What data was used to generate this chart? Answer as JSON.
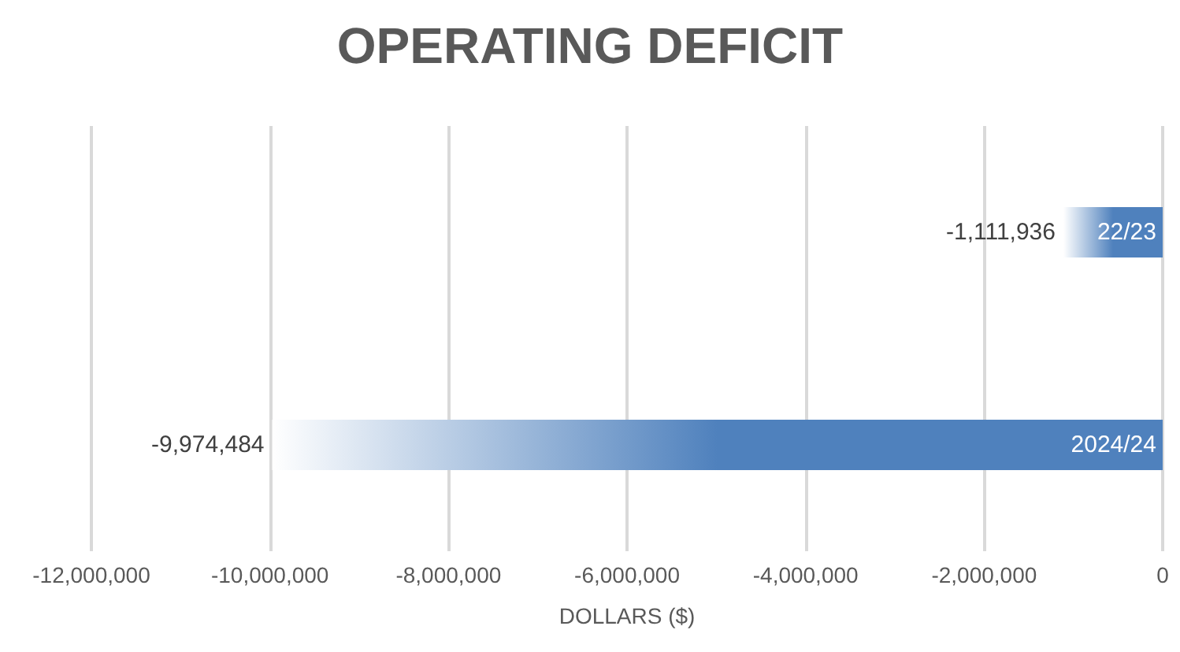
{
  "chart_data": {
    "type": "bar",
    "orientation": "horizontal",
    "title": "OPERATING DEFICIT",
    "xlabel": "DOLLARS ($)",
    "categories": [
      "22/23",
      "2024/24"
    ],
    "values": [
      -1111936,
      -9974484
    ],
    "value_labels": [
      "-1,111,936",
      "-9,974,484"
    ],
    "color": "#4f81bd",
    "xlim": [
      -12000000,
      0
    ],
    "xticks": [
      {
        "value": -12000000,
        "label": "-12,000,000"
      },
      {
        "value": -10000000,
        "label": "-10,000,000"
      },
      {
        "value": -8000000,
        "label": "-8,000,000"
      },
      {
        "value": -6000000,
        "label": "-6,000,000"
      },
      {
        "value": -4000000,
        "label": "-4,000,000"
      },
      {
        "value": -2000000,
        "label": "-2,000,000"
      },
      0
    ],
    "grid": "x"
  }
}
